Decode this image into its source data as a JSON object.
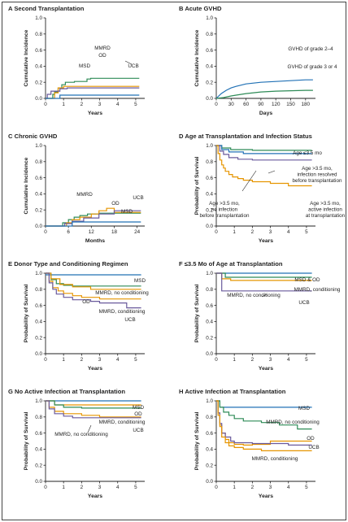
{
  "colors": {
    "msd": "#2171b5",
    "mmrd": "#2e8b57",
    "od": "#e69500",
    "ucb": "#6a5a9c",
    "grade24": "#2171b5",
    "grade34": "#2e8b57",
    "age_le35": "#2e8b57",
    "age_gt35_infection_resolved": "#6a5a9c",
    "age_gt35_no_infection": "#2171b5",
    "age_gt35_active_infection": "#e69500"
  },
  "panels": [
    {
      "letter": "A",
      "title": "Second Transplantation"
    },
    {
      "letter": "B",
      "title": "Acute GVHD"
    },
    {
      "letter": "C",
      "title": "Chronic GVHD"
    },
    {
      "letter": "D",
      "title": "Age at Transplantation and Infection Status"
    },
    {
      "letter": "E",
      "title": "Donor Type and Conditioning Regimen"
    },
    {
      "letter": "F",
      "title": "≤3.5 Mo of Age at Transplantation"
    },
    {
      "letter": "G",
      "title": "No Active Infection at Transplantation"
    },
    {
      "letter": "H",
      "title": "Active Infection at Transplantation"
    }
  ],
  "chart_data": [
    {
      "id": "A",
      "type": "line",
      "ylabel": "Cumulative Incidence",
      "xlabel": "Years",
      "xlim": [
        0,
        5.5
      ],
      "ylim": [
        0,
        1.0
      ],
      "xticks": [
        "0",
        "1",
        "2",
        "3",
        "4",
        "5"
      ],
      "yticks": [
        "0.0",
        "0.2",
        "0.4",
        "0.6",
        "0.8",
        "1.0"
      ],
      "step": true,
      "series": [
        {
          "name": "MMRD",
          "color_key": "mmrd",
          "x": [
            0,
            0.4,
            0.5,
            0.7,
            0.9,
            1.1,
            1.6,
            2.3,
            2.5,
            5.2
          ],
          "y": [
            0,
            0.05,
            0.08,
            0.13,
            0.17,
            0.2,
            0.21,
            0.24,
            0.25,
            0.25
          ]
        },
        {
          "name": "OD",
          "color_key": "od",
          "x": [
            0,
            0.5,
            0.7,
            1.0,
            5.2
          ],
          "y": [
            0,
            0.07,
            0.13,
            0.15,
            0.15
          ]
        },
        {
          "name": "UCB",
          "color_key": "ucb",
          "x": [
            0,
            0.1,
            0.3,
            0.8,
            1.2,
            5.2
          ],
          "y": [
            0,
            0.05,
            0.09,
            0.12,
            0.13,
            0.13
          ]
        },
        {
          "name": "MSD",
          "color_key": "msd",
          "x": [
            0,
            0.8,
            5.2
          ],
          "y": [
            0,
            0.04,
            0.04
          ]
        }
      ],
      "labels": [
        {
          "text": "MMRD"
        },
        {
          "text": "OD"
        },
        {
          "text": "MSD"
        },
        {
          "text": "UCB"
        }
      ]
    },
    {
      "id": "B",
      "type": "line",
      "ylabel": "Cumulative Incidence",
      "xlabel": "Days",
      "xlim": [
        0,
        200
      ],
      "ylim": [
        0,
        1.0
      ],
      "xticks": [
        "0",
        "30",
        "60",
        "90",
        "120",
        "150",
        "180"
      ],
      "yticks": [
        "0.0",
        "0.2",
        "0.4",
        "0.6",
        "0.8",
        "1.0"
      ],
      "step": false,
      "series": [
        {
          "name": "GVHD of grade 2–4",
          "color_key": "grade24",
          "x": [
            0,
            10,
            20,
            30,
            40,
            60,
            90,
            120,
            150,
            180,
            195
          ],
          "y": [
            0,
            0.06,
            0.1,
            0.13,
            0.15,
            0.18,
            0.2,
            0.21,
            0.22,
            0.23,
            0.23
          ]
        },
        {
          "name": "GVHD of grade 3 or 4",
          "color_key": "grade34",
          "x": [
            0,
            15,
            30,
            40,
            60,
            90,
            120,
            180,
            195
          ],
          "y": [
            0,
            0.01,
            0.03,
            0.04,
            0.06,
            0.08,
            0.09,
            0.1,
            0.1
          ]
        }
      ],
      "labels": [
        {
          "text": "GVHD of grade 2–4"
        },
        {
          "text": "GVHD of grade 3 or 4"
        }
      ]
    },
    {
      "id": "C",
      "type": "line",
      "ylabel": "Cumulative Incidence",
      "xlabel": "Months",
      "xlim": [
        0,
        26
      ],
      "ylim": [
        0,
        1.0
      ],
      "xticks": [
        "0",
        "6",
        "12",
        "18",
        "24"
      ],
      "yticks": [
        "0.0",
        "0.2",
        "0.4",
        "0.6",
        "0.8",
        "1.0"
      ],
      "step": true,
      "series": [
        {
          "name": "MMRD",
          "color_key": "mmrd",
          "x": [
            0,
            4.5,
            6,
            7.5,
            9,
            11,
            14,
            25
          ],
          "y": [
            0,
            0.04,
            0.08,
            0.11,
            0.13,
            0.15,
            0.16,
            0.16
          ]
        },
        {
          "name": "OD",
          "color_key": "od",
          "x": [
            0,
            5.5,
            7,
            9,
            12,
            14,
            16,
            18,
            25
          ],
          "y": [
            0,
            0.04,
            0.08,
            0.11,
            0.15,
            0.19,
            0.22,
            0.17,
            0.17
          ]
        },
        {
          "name": "UCB",
          "color_key": "ucb",
          "x": [
            0,
            5,
            7,
            10,
            14,
            18,
            25
          ],
          "y": [
            0,
            0.03,
            0.06,
            0.1,
            0.15,
            0.19,
            0.19
          ]
        },
        {
          "name": "MSD",
          "color_key": "msd",
          "x": [
            0,
            7,
            25
          ],
          "y": [
            0,
            0.05,
            0.05
          ]
        }
      ],
      "labels": [
        {
          "text": "MMRD"
        },
        {
          "text": "UCB"
        },
        {
          "text": "OD"
        },
        {
          "text": "MSD"
        }
      ]
    },
    {
      "id": "D",
      "type": "line",
      "ylabel": "Probability of Survival",
      "xlabel": "Years",
      "xlim": [
        0,
        5.5
      ],
      "ylim": [
        0,
        1.0
      ],
      "xticks": [
        "0",
        "1",
        "2",
        "3",
        "4",
        "5"
      ],
      "yticks": [
        "0.0",
        "0.2",
        "0.4",
        "0.6",
        "0.8",
        "1.0"
      ],
      "step": true,
      "series": [
        {
          "name": "Age ≤3.5 mo",
          "color_key": "age_le35",
          "x": [
            0,
            0.3,
            0.8,
            2.0,
            5.3
          ],
          "y": [
            1,
            0.97,
            0.95,
            0.94,
            0.94
          ]
        },
        {
          "name": "Age >3.5 mo, no infection before transplantation",
          "color_key": "age_gt35_no_infection",
          "x": [
            0,
            0.3,
            0.7,
            1.5,
            5.3
          ],
          "y": [
            1,
            0.95,
            0.92,
            0.9,
            0.9
          ]
        },
        {
          "name": "Age >3.5 mo, infection resolved before transplantation",
          "color_key": "age_gt35_infection_resolved",
          "x": [
            0,
            0.2,
            0.4,
            0.7,
            1.2,
            2.0,
            5.3
          ],
          "y": [
            1,
            0.93,
            0.89,
            0.85,
            0.83,
            0.82,
            0.82
          ]
        },
        {
          "name": "Age >3.5 mo, active infection at transplantation",
          "color_key": "age_gt35_active_infection",
          "x": [
            0,
            0.1,
            0.2,
            0.3,
            0.4,
            0.5,
            0.7,
            0.9,
            1.2,
            1.5,
            2.0,
            3.0,
            4.0,
            5.3
          ],
          "y": [
            1,
            0.9,
            0.82,
            0.76,
            0.72,
            0.68,
            0.64,
            0.61,
            0.59,
            0.57,
            0.55,
            0.53,
            0.5,
            0.5
          ]
        }
      ],
      "labels": [
        {
          "text": "Age ≤3.5 mo"
        },
        {
          "text": "Age >3.5 mo, infection resolved before transplantation"
        },
        {
          "text": "Age >3.5 mo, no infection before transplantation"
        },
        {
          "text": "Age >3.5 mo, active infection at transplantation"
        }
      ]
    },
    {
      "id": "E",
      "type": "line",
      "ylabel": "Probability of Survival",
      "xlabel": "Years",
      "xlim": [
        0,
        5.5
      ],
      "ylim": [
        0,
        1.0
      ],
      "xticks": [
        "0",
        "1",
        "2",
        "3",
        "4",
        "5"
      ],
      "yticks": [
        "0.0",
        "0.2",
        "0.4",
        "0.6",
        "0.8",
        "1.0"
      ],
      "step": true,
      "series": [
        {
          "name": "MSD",
          "color_key": "msd",
          "x": [
            0,
            5.3
          ],
          "y": [
            0.98,
            0.98
          ]
        },
        {
          "name": "MMRD, no conditioning",
          "color_key": "mmrd",
          "x": [
            0,
            0.3,
            0.6,
            1.0,
            1.5,
            5.3
          ],
          "y": [
            1,
            0.92,
            0.87,
            0.85,
            0.84,
            0.84
          ]
        },
        {
          "name": "OD",
          "color_key": "od",
          "x": [
            0,
            0.3,
            0.8,
            1.5,
            2.5,
            5.3
          ],
          "y": [
            1,
            0.93,
            0.86,
            0.83,
            0.8,
            0.8
          ]
        },
        {
          "name": "MMRD, conditioning",
          "color_key": "od",
          "x": [
            0,
            0.2,
            0.4,
            0.7,
            1.0,
            1.5,
            2.0,
            3.0,
            5.3
          ],
          "y": [
            1,
            0.9,
            0.82,
            0.78,
            0.75,
            0.72,
            0.7,
            0.68,
            0.68
          ]
        },
        {
          "name": "UCB",
          "color_key": "ucb",
          "x": [
            0,
            0.2,
            0.4,
            0.6,
            1.0,
            1.5,
            2.5,
            3.0,
            4.5,
            5.3
          ],
          "y": [
            1,
            0.88,
            0.8,
            0.74,
            0.7,
            0.67,
            0.65,
            0.63,
            0.57,
            0.57
          ]
        }
      ],
      "labels": [
        {
          "text": "MSD"
        },
        {
          "text": "MMRD, no conditioning"
        },
        {
          "text": "OD"
        },
        {
          "text": "MMRD, conditioning"
        },
        {
          "text": "UCB"
        }
      ]
    },
    {
      "id": "F",
      "type": "line",
      "ylabel": "Probability of Survival",
      "xlabel": "Years",
      "xlim": [
        0,
        5.5
      ],
      "ylim": [
        0,
        1.0
      ],
      "xticks": [
        "0",
        "1",
        "2",
        "3",
        "4",
        "5"
      ],
      "yticks": [
        "0.0",
        "0.2",
        "0.4",
        "0.6",
        "0.8",
        "1.0"
      ],
      "step": true,
      "series": [
        {
          "name": "MSD & OD",
          "color_key": "msd",
          "x": [
            0,
            5.3
          ],
          "y": [
            1.0,
            1.0
          ]
        },
        {
          "name": "MMRD, no conditioning",
          "color_key": "mmrd",
          "x": [
            0,
            0.5,
            5.3
          ],
          "y": [
            1,
            0.95,
            0.95
          ]
        },
        {
          "name": "MMRD, conditioning",
          "color_key": "od",
          "x": [
            0,
            0.3,
            0.8,
            5.3
          ],
          "y": [
            1,
            0.93,
            0.91,
            0.91
          ]
        },
        {
          "name": "UCB",
          "color_key": "ucb",
          "x": [
            0,
            0.3,
            5.3
          ],
          "y": [
            1,
            0.78,
            0.78
          ]
        }
      ],
      "labels": [
        {
          "text": "MSD & OD"
        },
        {
          "text": "MMRD, conditioning"
        },
        {
          "text": "MMRD, no conditioning"
        },
        {
          "text": "UCB"
        }
      ]
    },
    {
      "id": "G",
      "type": "line",
      "ylabel": "Probability of Survival",
      "xlabel": "Years",
      "xlim": [
        0,
        5.5
      ],
      "ylim": [
        0,
        1.0
      ],
      "xticks": [
        "0",
        "1",
        "2",
        "3",
        "4",
        "5"
      ],
      "yticks": [
        "0.0",
        "0.2",
        "0.4",
        "0.6",
        "0.8",
        "1.0"
      ],
      "step": true,
      "series": [
        {
          "name": "MSD",
          "color_key": "msd",
          "x": [
            0,
            5.3
          ],
          "y": [
            1.0,
            1.0
          ]
        },
        {
          "name": "OD",
          "color_key": "od",
          "x": [
            0,
            0.5,
            5.3
          ],
          "y": [
            1,
            0.95,
            0.95
          ]
        },
        {
          "name": "MMRD, conditioning",
          "color_key": "mmrd",
          "x": [
            0,
            0.5,
            1.0,
            2.0,
            5.3
          ],
          "y": [
            1,
            0.95,
            0.92,
            0.91,
            0.91
          ]
        },
        {
          "name": "MMRD, no conditioning",
          "color_key": "od",
          "x": [
            0,
            0.2,
            0.5,
            1.0,
            2.0,
            3.0,
            5.3
          ],
          "y": [
            1,
            0.92,
            0.87,
            0.84,
            0.82,
            0.8,
            0.8
          ]
        },
        {
          "name": "UCB",
          "color_key": "ucb",
          "x": [
            0,
            0.2,
            0.5,
            1.0,
            1.5,
            5.3
          ],
          "y": [
            1,
            0.9,
            0.84,
            0.81,
            0.79,
            0.79
          ]
        }
      ],
      "labels": [
        {
          "text": "MSD"
        },
        {
          "text": "OD"
        },
        {
          "text": "MMRD, conditioning"
        },
        {
          "text": "MMRD, no conditioning"
        },
        {
          "text": "UCB"
        }
      ]
    },
    {
      "id": "H",
      "type": "line",
      "ylabel": "Probability of Survival",
      "xlabel": "Years",
      "xlim": [
        0,
        5.5
      ],
      "ylim": [
        0,
        1.0
      ],
      "xticks": [
        "0",
        "1",
        "2",
        "3",
        "4",
        "5"
      ],
      "yticks": [
        "0.0",
        "0.2",
        "0.4",
        "0.6",
        "0.8",
        "1.0"
      ],
      "step": true,
      "series": [
        {
          "name": "MSD",
          "color_key": "msd",
          "x": [
            0,
            0.2,
            5.3
          ],
          "y": [
            1,
            0.92,
            0.92
          ]
        },
        {
          "name": "MMRD, no conditioning",
          "color_key": "mmrd",
          "x": [
            0,
            0.2,
            0.4,
            0.7,
            1.0,
            1.5,
            2.5,
            3.5,
            4.5,
            5.3
          ],
          "y": [
            1,
            0.92,
            0.86,
            0.82,
            0.78,
            0.75,
            0.73,
            0.7,
            0.65,
            0.65
          ]
        },
        {
          "name": "OD",
          "color_key": "od",
          "x": [
            0,
            0.1,
            0.2,
            0.3,
            0.5,
            0.7,
            1.0,
            1.5,
            2.0,
            3.0,
            5.3
          ],
          "y": [
            1,
            0.85,
            0.7,
            0.6,
            0.52,
            0.48,
            0.46,
            0.45,
            0.46,
            0.5,
            0.5
          ]
        },
        {
          "name": "UCB",
          "color_key": "ucb",
          "x": [
            0,
            0.1,
            0.2,
            0.3,
            0.5,
            0.8,
            1.0,
            2.0,
            3.0,
            4.0,
            5.3
          ],
          "y": [
            1,
            0.85,
            0.72,
            0.6,
            0.55,
            0.5,
            0.48,
            0.47,
            0.47,
            0.45,
            0.45
          ]
        },
        {
          "name": "MMRD, conditioning",
          "color_key": "od",
          "x": [
            0,
            0.1,
            0.2,
            0.3,
            0.5,
            0.7,
            1.0,
            1.5,
            2.5,
            5.3
          ],
          "y": [
            1,
            0.82,
            0.68,
            0.55,
            0.48,
            0.44,
            0.42,
            0.4,
            0.38,
            0.38
          ]
        }
      ],
      "labels": [
        {
          "text": "MSD"
        },
        {
          "text": "MMRD, no conditioning"
        },
        {
          "text": "OD"
        },
        {
          "text": "UCB"
        },
        {
          "text": "MMRD, conditioning"
        }
      ]
    }
  ]
}
